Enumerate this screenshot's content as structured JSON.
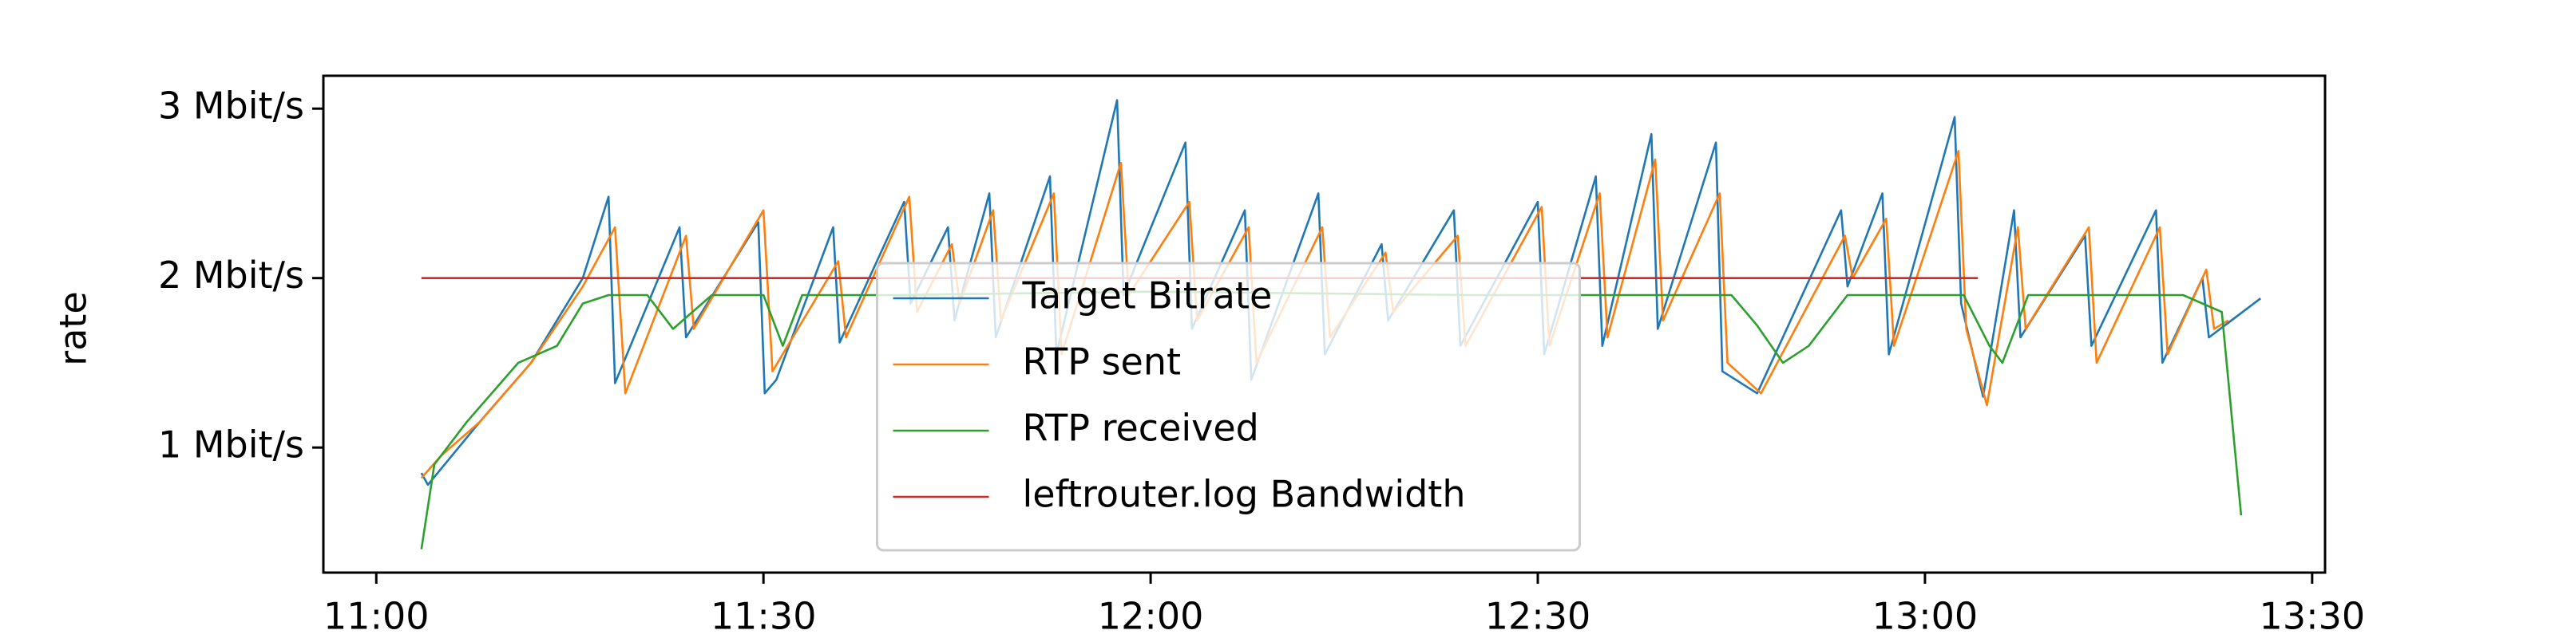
{
  "chart_data": {
    "type": "line",
    "ylabel": "rate",
    "xlim": [
      655.9,
      811.0
    ],
    "ylim": [
      0.262,
      3.194
    ],
    "xticks": [
      {
        "value": 660,
        "label": "11:00"
      },
      {
        "value": 690,
        "label": "11:30"
      },
      {
        "value": 720,
        "label": "12:00"
      },
      {
        "value": 750,
        "label": "12:30"
      },
      {
        "value": 780,
        "label": "13:00"
      },
      {
        "value": 810,
        "label": "13:30"
      }
    ],
    "yticks": [
      {
        "value": 1,
        "label": "1 Mbit/s"
      },
      {
        "value": 2,
        "label": "2 Mbit/s"
      },
      {
        "value": 3,
        "label": "3 Mbit/s"
      }
    ],
    "grid": false,
    "legend": "lower center",
    "series": [
      {
        "name": "Target Bitrate",
        "color": "#1f77b4",
        "x": [
          663.5,
          664,
          668,
          672,
          676,
          678,
          678.5,
          683.5,
          684,
          689.6,
          690.1,
          691,
          695.4,
          695.9,
          700.9,
          701.4,
          704.3,
          704.8,
          707.5,
          708,
          712.2,
          712.7,
          717.4,
          717.9,
          722.7,
          723.2,
          727.3,
          727.8,
          733,
          733.5,
          737.9,
          738.4,
          743.5,
          744,
          750,
          750.5,
          754.5,
          755,
          758.8,
          759.3,
          763.8,
          764.3,
          767,
          773.5,
          774,
          776.7,
          777.2,
          782.3,
          782.8,
          784.5,
          786.9,
          787.4,
          792.4,
          792.9,
          797.9,
          798.4,
          801.5,
          802,
          806
        ],
        "values": [
          0.85,
          0.78,
          1.15,
          1.5,
          2.0,
          2.48,
          1.38,
          2.3,
          1.65,
          2.33,
          1.32,
          1.4,
          2.3,
          1.62,
          2.45,
          1.85,
          2.3,
          1.75,
          2.5,
          1.65,
          2.6,
          1.55,
          3.05,
          1.9,
          2.8,
          1.7,
          2.4,
          1.4,
          2.5,
          1.55,
          2.2,
          1.75,
          2.4,
          1.6,
          2.45,
          1.55,
          2.6,
          1.6,
          2.85,
          1.7,
          2.8,
          1.45,
          1.32,
          2.4,
          1.95,
          2.5,
          1.55,
          2.95,
          1.85,
          1.3,
          2.4,
          1.65,
          2.25,
          1.6,
          2.4,
          1.5,
          2.0,
          1.65,
          1.88
        ]
      },
      {
        "name": "RTP sent",
        "color": "#ff7f0e",
        "x": [
          663.5,
          665,
          668,
          672,
          676,
          678.5,
          679.3,
          684,
          684.6,
          690,
          690.7,
          695.8,
          696.4,
          701.3,
          701.9,
          704.6,
          705.2,
          707.8,
          708.4,
          712.5,
          713.1,
          717.7,
          718.3,
          723,
          723.6,
          727.6,
          728.2,
          733.3,
          733.9,
          738.2,
          738.8,
          743.8,
          744.4,
          750.3,
          750.9,
          754.8,
          755.4,
          759.1,
          759.7,
          764.1,
          764.7,
          767.3,
          773.8,
          774.4,
          777,
          777.6,
          782.6,
          783.2,
          784.8,
          787.2,
          787.8,
          792.7,
          793.3,
          798.2,
          798.8,
          801.8,
          802.4,
          803.5
        ],
        "values": [
          0.82,
          0.95,
          1.15,
          1.5,
          1.95,
          2.3,
          1.32,
          2.25,
          1.7,
          2.4,
          1.45,
          2.1,
          1.65,
          2.48,
          1.8,
          2.2,
          1.85,
          2.4,
          1.75,
          2.5,
          1.55,
          2.68,
          1.9,
          2.45,
          1.75,
          2.3,
          1.5,
          2.3,
          1.65,
          2.15,
          1.8,
          2.25,
          1.6,
          2.42,
          1.6,
          2.5,
          1.65,
          2.7,
          1.75,
          2.5,
          1.5,
          1.32,
          2.25,
          2.0,
          2.35,
          1.6,
          2.75,
          1.7,
          1.25,
          2.3,
          1.7,
          2.3,
          1.5,
          2.3,
          1.55,
          2.05,
          1.7,
          1.75
        ]
      },
      {
        "name": "RTP received",
        "color": "#2ca02c",
        "x": [
          663.5,
          664.5,
          667,
          671,
          674,
          676,
          678,
          681,
          683,
          686,
          690,
          691.5,
          693,
          700,
          720,
          745,
          765,
          767,
          769,
          771,
          774,
          783,
          785,
          786,
          788,
          800,
          803,
          804.5
        ],
        "values": [
          0.4,
          0.9,
          1.15,
          1.5,
          1.6,
          1.85,
          1.9,
          1.9,
          1.7,
          1.9,
          1.9,
          1.6,
          1.9,
          1.9,
          1.92,
          1.9,
          1.9,
          1.72,
          1.5,
          1.6,
          1.9,
          1.9,
          1.6,
          1.5,
          1.9,
          1.9,
          1.8,
          0.6
        ]
      },
      {
        "name": "leftrouter.log Bandwidth",
        "color": "#d62728",
        "x": [
          663.5,
          784.1
        ],
        "values": [
          2,
          2
        ]
      }
    ]
  }
}
